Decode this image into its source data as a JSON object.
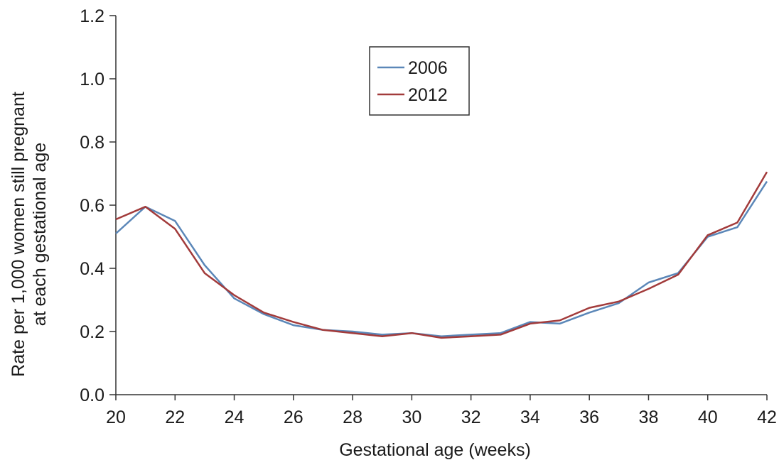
{
  "chart_data": {
    "type": "line",
    "title": "",
    "xlabel": "Gestational age (weeks)",
    "ylabel_lines": [
      "Rate per 1,000 women still pregnant",
      "at each gestational age"
    ],
    "xlim": [
      20,
      42
    ],
    "ylim": [
      0,
      1.2
    ],
    "xticks": [
      "20",
      "22",
      "24",
      "26",
      "28",
      "30",
      "32",
      "34",
      "36",
      "38",
      "40",
      "42"
    ],
    "yticks": [
      "0.0",
      "0.2",
      "0.4",
      "0.6",
      "0.8",
      "1.0",
      "1.2"
    ],
    "grid": false,
    "legend_position": "top-center",
    "x": [
      20,
      21,
      22,
      23,
      24,
      25,
      26,
      27,
      28,
      29,
      30,
      31,
      32,
      33,
      34,
      35,
      36,
      37,
      38,
      39,
      40,
      41,
      42
    ],
    "series": [
      {
        "name": "2006",
        "color": "#5b87b8",
        "values": [
          0.51,
          0.595,
          0.55,
          0.41,
          0.305,
          0.255,
          0.22,
          0.205,
          0.2,
          0.19,
          0.195,
          0.185,
          0.19,
          0.195,
          0.23,
          0.225,
          0.26,
          0.29,
          0.355,
          0.385,
          0.5,
          0.53,
          0.675
        ]
      },
      {
        "name": "2012",
        "color": "#a23b3b",
        "values": [
          0.555,
          0.595,
          0.525,
          0.385,
          0.315,
          0.26,
          0.23,
          0.205,
          0.195,
          0.185,
          0.195,
          0.18,
          0.185,
          0.19,
          0.225,
          0.235,
          0.275,
          0.295,
          0.335,
          0.38,
          0.505,
          0.545,
          0.705
        ]
      }
    ]
  }
}
